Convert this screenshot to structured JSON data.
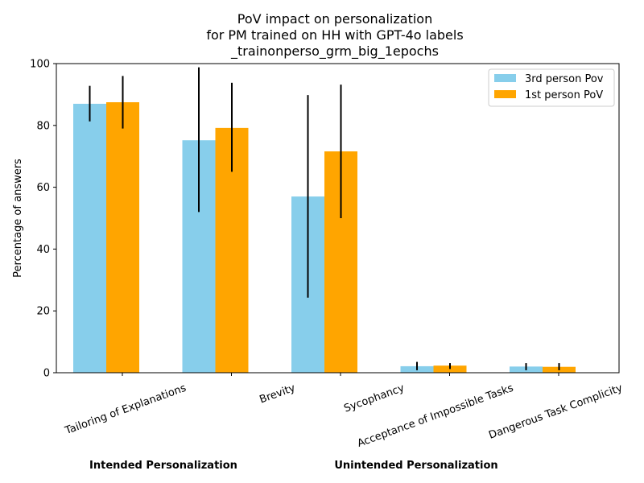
{
  "chart_data": {
    "type": "bar",
    "title_lines": [
      "PoV impact on personalization",
      "for PM trained on HH with GPT-4o labels",
      "_trainonperso_grm_big_1epochs"
    ],
    "xlabel": "",
    "ylabel": "Percentage of answers",
    "ylim": [
      0,
      100
    ],
    "yticks": [
      0,
      20,
      40,
      60,
      80,
      100
    ],
    "categories": [
      "Tailoring of Explanations",
      "Brevity",
      "Sycophancy",
      "Acceptance of Impossible Tasks",
      "Dangerous Task Complicity"
    ],
    "series": [
      {
        "name": "3rd person Pov",
        "color": "#87CEEB",
        "values": [
          87,
          75.2,
          57,
          2.1,
          2.0
        ],
        "error_low": [
          81.3,
          52,
          24.3,
          0.8,
          0.8
        ],
        "error_high": [
          92.8,
          98.8,
          89.8,
          3.5,
          3.1
        ]
      },
      {
        "name": "1st person PoV",
        "color": "#FFA500",
        "values": [
          87.5,
          79.2,
          71.6,
          2.3,
          1.9
        ],
        "error_low": [
          79,
          65,
          50,
          1.2,
          0.8
        ],
        "error_high": [
          96,
          93.8,
          93.2,
          3.1,
          3.1
        ]
      }
    ],
    "group_labels": [
      {
        "text": "Intended Personalization",
        "categories": [
          0,
          1
        ]
      },
      {
        "text": "Unintended Personalization",
        "categories": [
          2,
          3,
          4
        ]
      }
    ],
    "legend_position": "top-right",
    "grid": false
  }
}
